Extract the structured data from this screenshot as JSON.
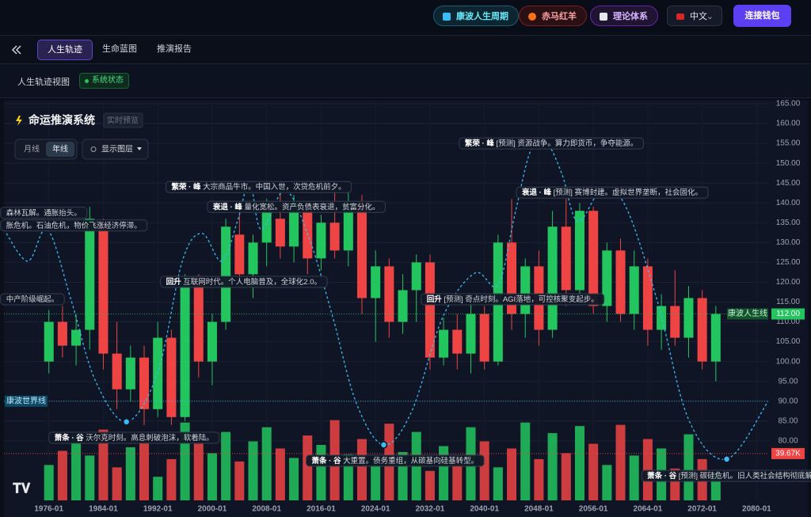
{
  "header": {
    "buttons": [
      "康波人生周期",
      "赤马红羊",
      "理论体系"
    ],
    "language": "中文",
    "connect": "连接钱包"
  },
  "tabs": [
    "人生轨迹",
    "生命蓝图",
    "推演报告"
  ],
  "view": {
    "title": "人生轨迹视图",
    "status": "系统状态"
  },
  "chart_data": {
    "type": "candlestick",
    "title": "命运推演系统",
    "badge": "实时预览",
    "intervals": [
      "月线",
      "年线"
    ],
    "layer_button": "显示图层",
    "x": [
      1976,
      1978,
      1980,
      1982,
      1984,
      1986,
      1988,
      1990,
      1992,
      1994,
      1996,
      1998,
      2000,
      2002,
      2004,
      2006,
      2008,
      2010,
      2012,
      2014,
      2016,
      2018,
      2020,
      2022,
      2024,
      2026,
      2028,
      2030,
      2032,
      2034,
      2036,
      2038,
      2040,
      2042,
      2044,
      2046,
      2048,
      2050,
      2052,
      2054,
      2056,
      2058,
      2060,
      2062,
      2064,
      2066,
      2068,
      2070,
      2072,
      2074
    ],
    "open": [
      100,
      110,
      104,
      108,
      134,
      102,
      93,
      101,
      88,
      106,
      86,
      120,
      100,
      110,
      132,
      122,
      130,
      136,
      129,
      138,
      126,
      135,
      128,
      140,
      116,
      124,
      110,
      118,
      125,
      101,
      108,
      102,
      112,
      100,
      130,
      112,
      124,
      108,
      134,
      118,
      138,
      114,
      128,
      112,
      124,
      108,
      114,
      106,
      116,
      100
    ],
    "high": [
      113,
      114,
      112,
      139,
      136,
      110,
      104,
      104,
      110,
      108,
      122,
      122,
      112,
      136,
      140,
      132,
      141,
      143,
      142,
      140,
      137,
      144,
      143,
      142,
      128,
      126,
      122,
      127,
      127,
      111,
      112,
      115,
      114,
      132,
      141,
      126,
      128,
      138,
      141,
      140,
      139,
      130,
      131,
      128,
      126,
      117,
      123,
      119,
      118,
      114
    ],
    "low": [
      97,
      101,
      99,
      103,
      98,
      88,
      90,
      84,
      86,
      84,
      85,
      96,
      94,
      108,
      119,
      116,
      124,
      126,
      125,
      122,
      123,
      126,
      124,
      112,
      105,
      106,
      107,
      110,
      98,
      99,
      98,
      97,
      98,
      99,
      108,
      106,
      104,
      106,
      114,
      116,
      112,
      110,
      110,
      108,
      104,
      103,
      104,
      101,
      98,
      95
    ],
    "close": [
      110,
      104,
      108,
      136,
      102,
      93,
      101,
      88,
      106,
      86,
      120,
      100,
      110,
      134,
      122,
      130,
      138,
      129,
      140,
      126,
      135,
      128,
      140,
      116,
      124,
      110,
      118,
      125,
      101,
      108,
      102,
      112,
      100,
      130,
      112,
      124,
      108,
      134,
      118,
      138,
      114,
      128,
      112,
      124,
      108,
      114,
      106,
      116,
      100,
      112
    ],
    "volume": [
      30,
      42,
      55,
      38,
      60,
      28,
      45,
      52,
      20,
      35,
      66,
      48,
      40,
      58,
      33,
      50,
      62,
      44,
      36,
      55,
      47,
      68,
      39,
      52,
      30,
      65,
      41,
      58,
      25,
      46,
      36,
      62,
      50,
      28,
      44,
      66,
      35,
      57,
      40,
      63,
      48,
      30,
      64,
      38,
      52,
      44,
      27,
      56,
      35,
      24
    ],
    "up_color": "#22c55e",
    "down_color": "#ef4444",
    "xlim": [
      1969.4,
      2081.7
    ],
    "ylim": [
      65,
      165.5
    ],
    "volume_lim": [
      0,
      100
    ],
    "xticks": [
      {
        "value": 1976,
        "label": "1976-01"
      },
      {
        "value": 1984,
        "label": "1984-01"
      },
      {
        "value": 1992,
        "label": "1992-01"
      },
      {
        "value": 2000,
        "label": "2000-01"
      },
      {
        "value": 2008,
        "label": "2008-01"
      },
      {
        "value": 2016,
        "label": "2016-01"
      },
      {
        "value": 2024,
        "label": "2024-01"
      },
      {
        "value": 2032,
        "label": "2032-01"
      },
      {
        "value": 2040,
        "label": "2040-01"
      },
      {
        "value": 2048,
        "label": "2048-01"
      },
      {
        "value": 2056,
        "label": "2056-01"
      },
      {
        "value": 2064,
        "label": "2064-01"
      },
      {
        "value": 2072,
        "label": "2072-01"
      },
      {
        "value": 2080,
        "label": "2080-01"
      }
    ],
    "yticks": [
      {
        "value": 80,
        "label": "80.00"
      },
      {
        "value": 85,
        "label": "85.00"
      },
      {
        "value": 90,
        "label": "90.00"
      },
      {
        "value": 95,
        "label": "95.00"
      },
      {
        "value": 100,
        "label": "100.00"
      },
      {
        "value": 105,
        "label": "105.00"
      },
      {
        "value": 110,
        "label": "110.00"
      },
      {
        "value": 115,
        "label": "115.00"
      },
      {
        "value": 120,
        "label": "120.00"
      },
      {
        "value": 125,
        "label": "125.00"
      },
      {
        "value": 130,
        "label": "130.00"
      },
      {
        "value": 135,
        "label": "135.00"
      },
      {
        "value": 140,
        "label": "140.00"
      },
      {
        "value": 145,
        "label": "145.00"
      },
      {
        "value": 150,
        "label": "150.00"
      },
      {
        "value": 155,
        "label": "155.00"
      },
      {
        "value": 160,
        "label": "160.00"
      },
      {
        "value": 165,
        "label": "165.00"
      }
    ],
    "grid": true,
    "wave": {
      "color": "#38bdf8",
      "x": [
        1969.4,
        1972.9,
        1975.8,
        1979.3,
        1982.8,
        1987.4,
        1992,
        1995.6,
        1998.5,
        2001.4,
        2003.7,
        2005.5,
        2007.2,
        2010.7,
        2014.2,
        2017.7,
        2021.2,
        2025.2,
        2029.3,
        2033.9,
        2038.6,
        2042,
        2044.5,
        2046.8,
        2049.1,
        2051.4,
        2053.7,
        2057.2,
        2060.7,
        2065.4,
        2070,
        2075.6,
        2081.7
      ],
      "values": [
        133.3,
        125.3,
        133.3,
        115.3,
        95.3,
        84.8,
        97.3,
        125.3,
        132.3,
        125.3,
        135.3,
        145.2,
        133.3,
        143.2,
        131.3,
        111.3,
        89.4,
        79,
        87.4,
        111.3,
        122.3,
        119.3,
        137.3,
        153.2,
        155.2,
        147.2,
        135.3,
        143.2,
        139.3,
        115.3,
        85.4,
        75.4,
        90
      ]
    },
    "troughs": {
      "x": [
        1987.4,
        2025.2,
        2075.6
      ],
      "values": [
        84.8,
        79,
        75.4
      ]
    },
    "hlines": [
      {
        "name": "康波人生线",
        "value": 112,
        "value_label": "112.00",
        "color": "#22c55e"
      },
      {
        "name": "康波世界线",
        "value": 90,
        "color": "#38bdf8"
      }
    ],
    "volume_line": {
      "value": 39.67,
      "value_label": "39.67K",
      "color": "#ef4444"
    },
    "annotations": [
      {
        "tag": "繁荣 · 峰",
        "text": "大宗商品牛市。中国入世，次贷危机前夕。",
        "x": 1993.2,
        "y": 144
      },
      {
        "tag": "衰退 · 峰",
        "text": "量化宽松。资产负债表衰退，贫富分化。",
        "x": 1999.3,
        "y": 139
      },
      {
        "tag": "繁荣 · 峰",
        "text": "[预测] 资源战争。算力即货币，争夺能源。",
        "x": 2036.3,
        "y": 155
      },
      {
        "tag": "衰退 · 峰",
        "text": "[预测] 赛博封建。虚拟世界垄断，社会固化。",
        "x": 2044.7,
        "y": 142.6
      },
      {
        "tag": "回升",
        "text": "互联网时代。个人电脑普及，全球化2.0。",
        "x": 1992.4,
        "y": 120.1
      },
      {
        "tag": "回升",
        "text": "[预测] 奇点时刻。AGI落地，可控核聚变起步。",
        "x": 2030.7,
        "y": 115.7
      },
      {
        "tag": "萧条 · 谷",
        "text": "沃尔克时刻。高息刺破泡沫，软着陆。",
        "x": 1976,
        "y": 80.8
      },
      {
        "tag": "萧条 · 谷",
        "text": "大重置。债务重组，从碳基向硅基转型。",
        "x": 2013.8,
        "y": 75
      },
      {
        "tag": "萧条 · 谷",
        "text": "[预测] 碳硅危机。旧人类社会结构彻底解体。",
        "x": 2063.1,
        "y": 71.2
      },
      {
        "text": "森林瓦解。通胀抬头。",
        "x": 1968.9,
        "y": 137.5
      },
      {
        "text": "胀危机。石油危机，物价飞涨经济停滞。",
        "x": 1968.9,
        "y": 134.3
      },
      {
        "text": "中产阶级崛起。",
        "x": 1968.9,
        "y": 115.7
      }
    ]
  }
}
